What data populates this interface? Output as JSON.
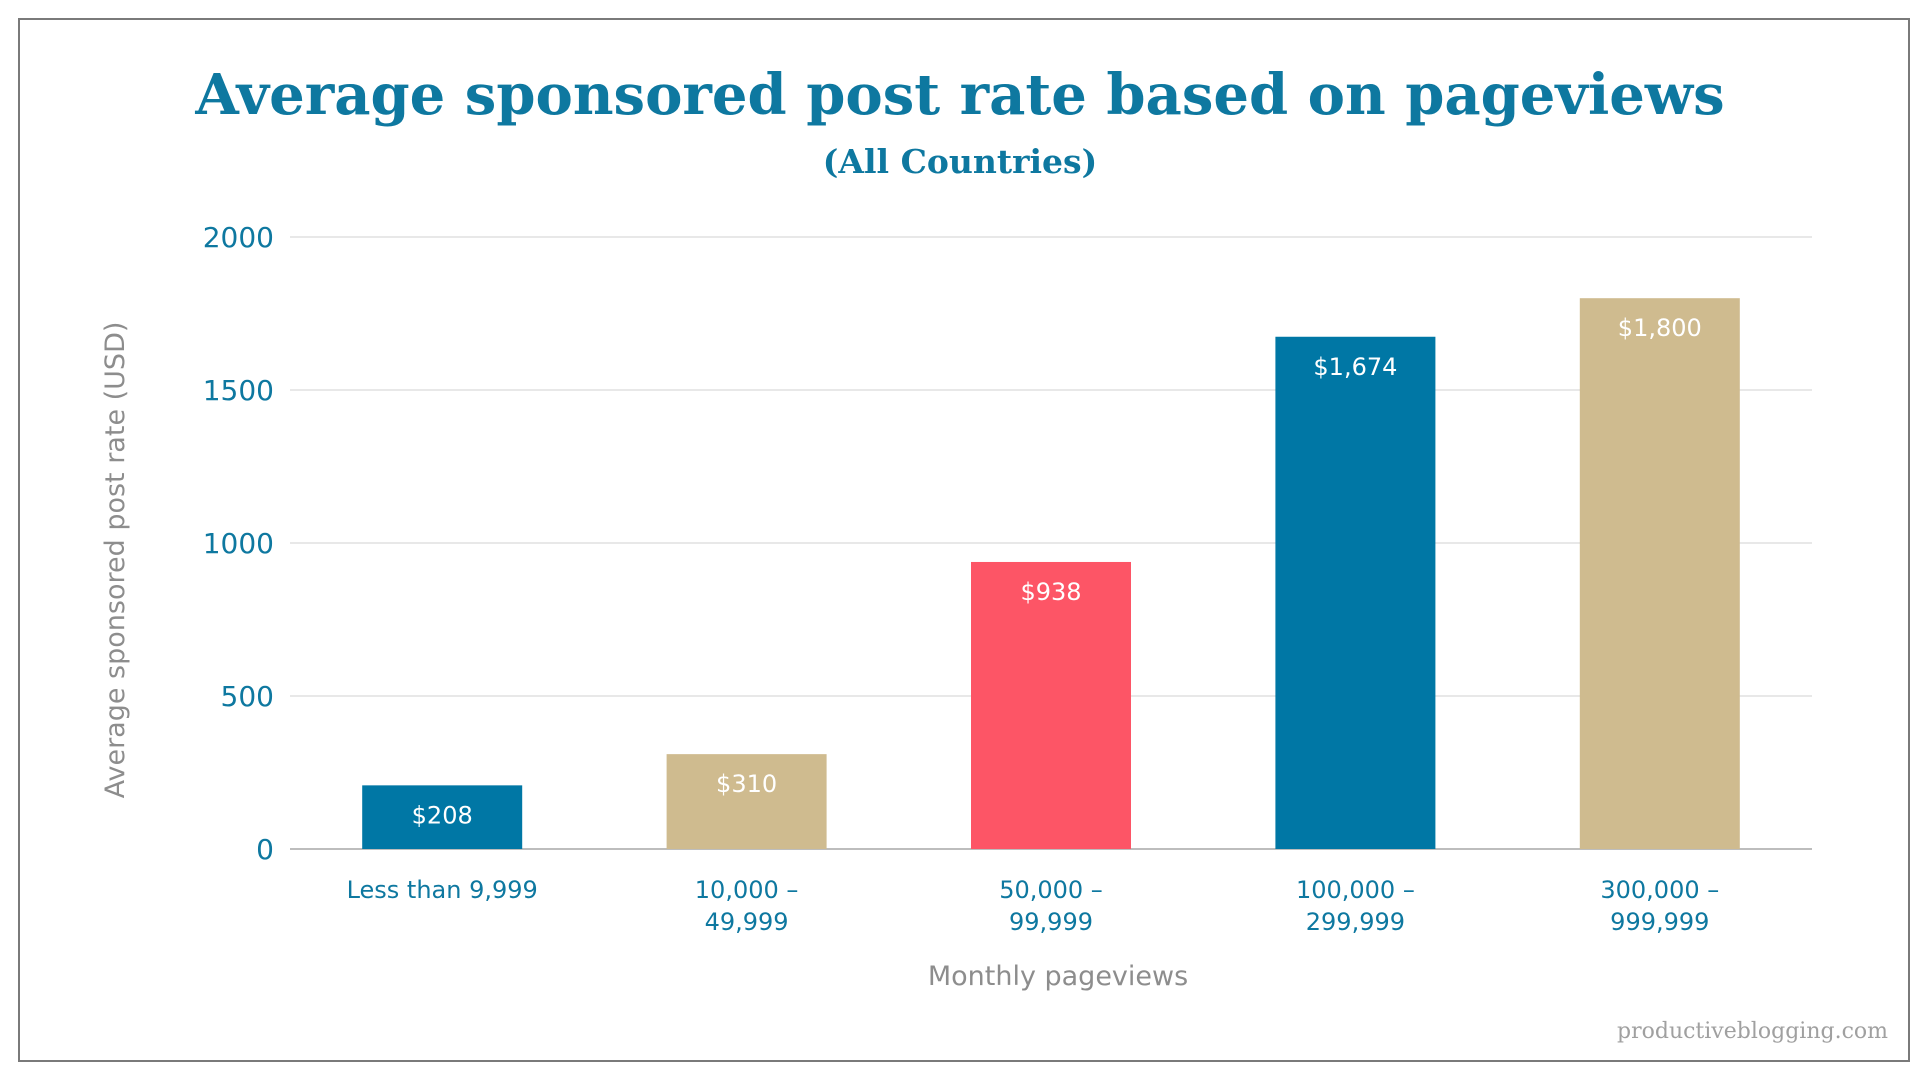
{
  "chart_data": {
    "type": "bar",
    "title": "Average sponsored post rate based on pageviews",
    "subtitle": "(All Countries)",
    "xlabel": "Monthly pageviews",
    "ylabel": "Average sponsored post rate (USD)",
    "ylim": [
      0,
      2000
    ],
    "yticks": [
      "0",
      "500",
      "1000",
      "1500",
      "2000"
    ],
    "ytick_values": [
      0,
      500,
      1000,
      1500,
      2000
    ],
    "grid": true,
    "legend": "none",
    "categories": [
      [
        "Less than 9,999"
      ],
      [
        "10,000 –",
        "49,999"
      ],
      [
        "50,000 –",
        "99,999"
      ],
      [
        "100,000 –",
        "299,999"
      ],
      [
        "300,000 –",
        "999,999"
      ]
    ],
    "values": [
      208,
      310,
      938,
      1674,
      1800
    ],
    "data_labels": [
      "$208",
      "$310",
      "$938",
      "$1,674",
      "$1,800"
    ],
    "colors": [
      "#0077a5",
      "#cfbb8f",
      "#fd5566",
      "#0077a5",
      "#cfbb8f"
    ]
  },
  "watermark": "productiveblogging.com"
}
